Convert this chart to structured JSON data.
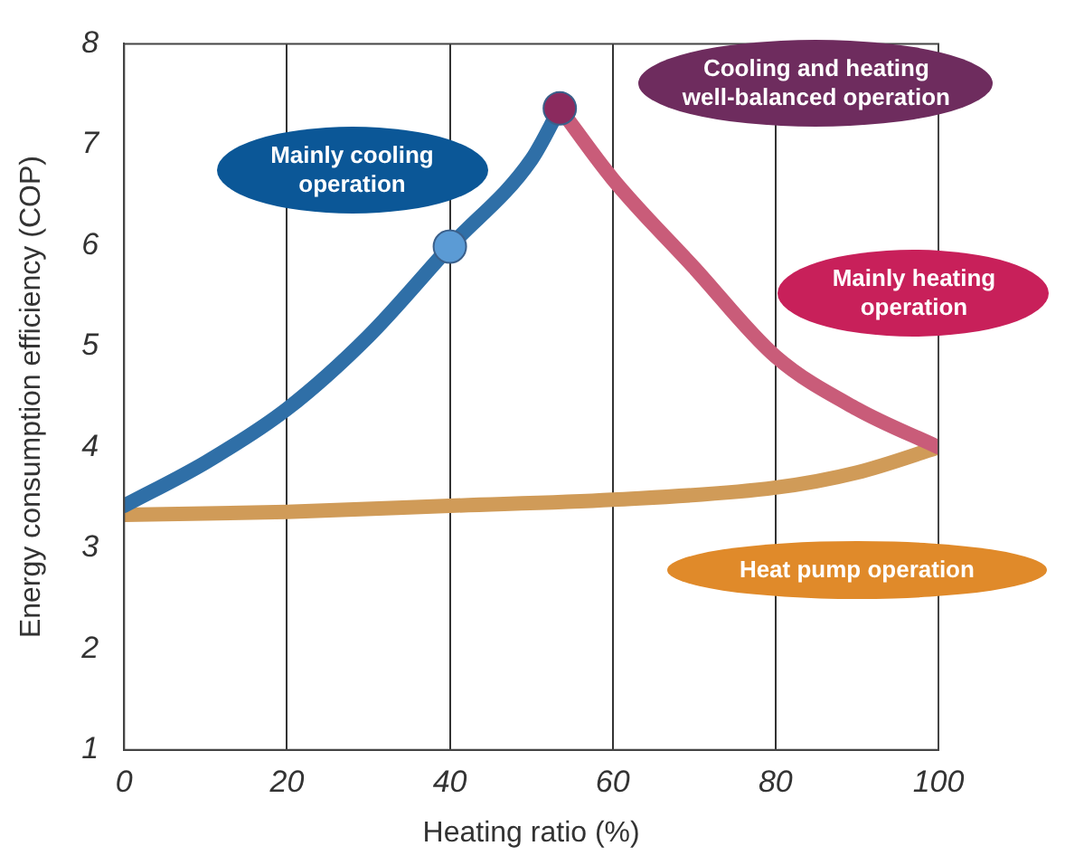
{
  "chart_data": {
    "type": "line",
    "xlabel": "Heating ratio (%)",
    "ylabel": "Energy consumption efficiency (COP)",
    "xlim": [
      0,
      100
    ],
    "xticks": [
      0,
      20,
      40,
      60,
      80,
      100
    ],
    "ylim": [
      1,
      8
    ],
    "yticks": [
      1,
      2,
      3,
      4,
      5,
      6,
      7,
      8
    ],
    "grid": "x",
    "legend": false,
    "marker": "none",
    "line_style": "solid",
    "series": [
      {
        "name": "Mainly cooling operation",
        "color": "#2f6fa7",
        "x": [
          0,
          10,
          20,
          30,
          40,
          50,
          53.5
        ],
        "values": [
          3.42,
          3.85,
          4.38,
          5.1,
          5.99,
          6.85,
          7.36
        ]
      },
      {
        "name": "Mainly heating operation",
        "color": "#c95c79",
        "x": [
          53.5,
          60,
          70,
          80,
          90,
          100
        ],
        "values": [
          7.36,
          6.66,
          5.78,
          4.9,
          4.38,
          4.0
        ]
      },
      {
        "name": "Heat pump operation",
        "color": "#d09b58",
        "x": [
          0,
          20,
          40,
          60,
          80,
          90,
          100
        ],
        "values": [
          3.33,
          3.36,
          3.42,
          3.48,
          3.6,
          3.75,
          4.0
        ]
      },
      {
        "type": "scatter",
        "marker": "circle",
        "colors": [
          "#5b9bd5",
          "#8b2a5e"
        ],
        "x": [
          40,
          53.5
        ],
        "values": [
          5.99,
          7.36
        ]
      }
    ],
    "annotations": [
      "Cooling and heating well-balanced operation"
    ]
  }
}
